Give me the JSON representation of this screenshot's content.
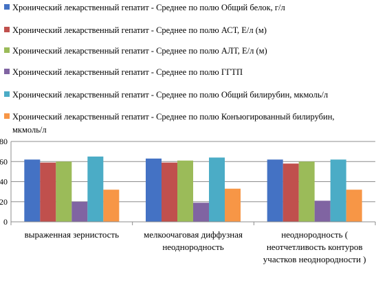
{
  "chart_data": {
    "type": "bar",
    "title": "",
    "xlabel": "",
    "ylabel": "",
    "ylim": [
      0,
      80
    ],
    "yticks": [
      0,
      20,
      40,
      60,
      80
    ],
    "grid": true,
    "legend_position": "top",
    "categories": [
      [
        "выраженная зернистость"
      ],
      [
        "мелкоочаговая диффузная",
        "неоднородность"
      ],
      [
        "неоднородность (",
        "неотчетливость контуров",
        "участков неоднородности )"
      ]
    ],
    "series": [
      {
        "name_lines": [
          "Хронический лекарственный гепатит - Среднее по полю Общий белок, г/л"
        ],
        "color": "#4472C4",
        "values": [
          62,
          63,
          62
        ]
      },
      {
        "name_lines": [
          "Хронический лекарственный гепатит - Среднее по полю АСТ, Е/л (м)"
        ],
        "color": "#C0504D",
        "values": [
          59,
          59,
          58
        ]
      },
      {
        "name_lines": [
          "Хронический лекарственный гепатит - Среднее по полю АЛТ, Е/л (м)"
        ],
        "color": "#9BBB59",
        "values": [
          60,
          61,
          60
        ]
      },
      {
        "name_lines": [
          "Хронический лекарственный гепатит - Среднее по полю ГГТП"
        ],
        "color": "#8064A2",
        "values": [
          20,
          19,
          21
        ]
      },
      {
        "name_lines": [
          "Хронический лекарственный гепатит - Среднее по полю Общий билирубин, мкмоль/л"
        ],
        "color": "#4BACC6",
        "values": [
          65,
          64,
          62
        ]
      },
      {
        "name_lines": [
          "Хронический лекарственный гепатит - Среднее по полю Конъюгированный билирубин,",
          "мкмоль/л"
        ],
        "color": "#F79646",
        "values": [
          32,
          33,
          32
        ]
      }
    ]
  }
}
